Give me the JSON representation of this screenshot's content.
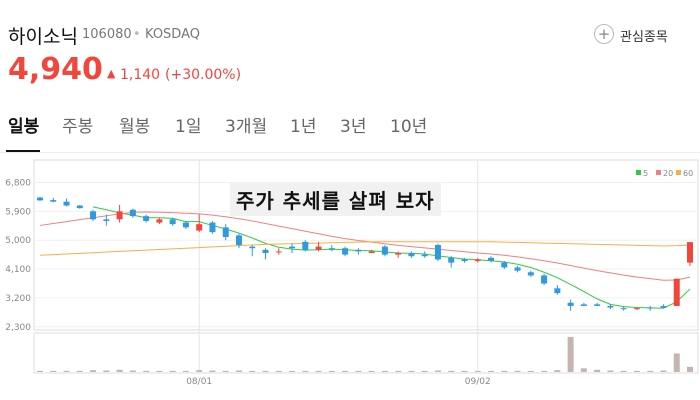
{
  "header": {
    "name": "하이소닉",
    "code": "106080",
    "market": "KOSDAQ",
    "watch": "관심종목",
    "price": "4,940",
    "change": "1,140",
    "change_pct": "(+30.00%)"
  },
  "tabs": [
    "일봉",
    "주봉",
    "월봉",
    "1일",
    "3개월",
    "1년",
    "3년",
    "10년"
  ],
  "overlay": "주가 추세를 살펴 보자",
  "chart_data": {
    "type": "candlestick",
    "categories": [
      null,
      null,
      null,
      null,
      null,
      null,
      null,
      null,
      null,
      null,
      null,
      null,
      "08/01",
      null,
      null,
      null,
      null,
      null,
      null,
      null,
      null,
      null,
      null,
      null,
      null,
      null,
      null,
      null,
      null,
      null,
      null,
      null,
      null,
      "09/02",
      null,
      null,
      null,
      null,
      null,
      null,
      null,
      null,
      null,
      null,
      null,
      null,
      null,
      null,
      null,
      null
    ],
    "open": [
      6330,
      6250,
      6200,
      6080,
      5900,
      5650,
      5650,
      5950,
      5750,
      5550,
      5650,
      5550,
      5300,
      5550,
      5400,
      5150,
      4800,
      4700,
      4650,
      4800,
      4950,
      4700,
      4750,
      4750,
      4700,
      4600,
      4800,
      4550,
      4600,
      4550,
      4850,
      4450,
      4400,
      4350,
      4450,
      4300,
      4150,
      4000,
      3900,
      3500,
      3050,
      3000,
      3000,
      2950,
      2880,
      2850,
      2900,
      2950,
      2950,
      4300
    ],
    "high": [
      6350,
      6320,
      6300,
      6100,
      5950,
      5800,
      6100,
      5980,
      5800,
      5700,
      5700,
      5600,
      5800,
      5600,
      5500,
      5200,
      4850,
      4750,
      4750,
      4900,
      5000,
      4950,
      4850,
      4800,
      4750,
      4700,
      4850,
      4650,
      4650,
      4650,
      4900,
      4500,
      4450,
      4450,
      4500,
      4350,
      4200,
      4050,
      3950,
      3600,
      3150,
      3050,
      3050,
      3000,
      2950,
      2900,
      2950,
      3000,
      3800,
      4940
    ],
    "low": [
      6230,
      6180,
      6050,
      5980,
      5600,
      5450,
      5550,
      5700,
      5550,
      5500,
      5450,
      5350,
      5250,
      5200,
      5000,
      4750,
      4500,
      4400,
      4550,
      4600,
      4650,
      4650,
      4650,
      4500,
      4550,
      4600,
      4500,
      4450,
      4450,
      4450,
      4350,
      4150,
      4300,
      4300,
      4300,
      4100,
      4000,
      3850,
      3600,
      3300,
      2800,
      2950,
      2950,
      2850,
      2800,
      2820,
      2800,
      2880,
      2950,
      4200
    ],
    "close": [
      6240,
      6200,
      6080,
      6000,
      5650,
      5600,
      5900,
      5750,
      5600,
      5650,
      5500,
      5400,
      5500,
      5250,
      5100,
      4850,
      4750,
      4600,
      4650,
      4750,
      4700,
      4800,
      4700,
      4550,
      4650,
      4650,
      4550,
      4600,
      4500,
      4500,
      4400,
      4300,
      4350,
      4400,
      4350,
      4150,
      4050,
      3900,
      3650,
      3350,
      2950,
      2950,
      2950,
      2900,
      2850,
      2880,
      2880,
      2900,
      3800,
      4940
    ],
    "volume": [
      3,
      3,
      3,
      3,
      5,
      4,
      6,
      4,
      3,
      3,
      3,
      3,
      5,
      4,
      3,
      4,
      3,
      3,
      3,
      3,
      3,
      3,
      3,
      3,
      3,
      3,
      3,
      3,
      3,
      3,
      4,
      3,
      3,
      3,
      3,
      3,
      3,
      3,
      3,
      5,
      95,
      10,
      6,
      4,
      3,
      3,
      3,
      4,
      50,
      14
    ],
    "series": [
      {
        "name": "5",
        "color": "#2ecc40",
        "values": [
          null,
          null,
          null,
          null,
          6040,
          5950,
          5850,
          5780,
          5700,
          5700,
          5680,
          5580,
          5580,
          5460,
          5350,
          5220,
          5070,
          4900,
          4780,
          4720,
          4690,
          4700,
          4720,
          4700,
          4680,
          4670,
          4630,
          4600,
          4590,
          4570,
          4510,
          4460,
          4410,
          4390,
          4360,
          4320,
          4250,
          4150,
          4000,
          3830,
          3620,
          3400,
          3170,
          3000,
          2930,
          2900,
          2890,
          2880,
          3080,
          3480
        ]
      },
      {
        "name": "20",
        "color": "#f08080",
        "values": [
          5460,
          5520,
          5580,
          5640,
          5700,
          5760,
          5820,
          5870,
          5880,
          5870,
          5860,
          5840,
          5820,
          5780,
          5730,
          5670,
          5600,
          5520,
          5440,
          5360,
          5280,
          5200,
          5120,
          5050,
          4990,
          4940,
          4890,
          4840,
          4800,
          4760,
          4720,
          4680,
          4640,
          4600,
          4570,
          4530,
          4480,
          4420,
          4360,
          4290,
          4210,
          4130,
          4050,
          3980,
          3910,
          3850,
          3800,
          3750,
          3760,
          3850
        ]
      },
      {
        "name": "60",
        "color": "#f5b041",
        "values": [
          4530,
          4550,
          4570,
          4590,
          4610,
          4630,
          4650,
          4670,
          4690,
          4710,
          4730,
          4750,
          4770,
          4790,
          4810,
          4830,
          4850,
          4870,
          4880,
          4890,
          4900,
          4910,
          4920,
          4930,
          4940,
          4950,
          4950,
          4950,
          4950,
          4950,
          4950,
          4950,
          4950,
          4950,
          4950,
          4940,
          4930,
          4920,
          4910,
          4900,
          4890,
          4880,
          4870,
          4860,
          4850,
          4840,
          4830,
          4820,
          4830,
          4850
        ]
      }
    ],
    "up_color": "#f2463d",
    "down_color": "#2f9ae0",
    "volume_color": "#c5b5b0",
    "ylim": [
      2200,
      7500
    ],
    "yticks": [
      {
        "value": 6800,
        "label": "6,800"
      },
      {
        "value": 5900,
        "label": "5,900"
      },
      {
        "value": 5000,
        "label": "5,000"
      },
      {
        "value": 4100,
        "label": "4,100"
      },
      {
        "value": 3200,
        "label": "3,200"
      },
      {
        "value": 2300,
        "label": "2,300"
      }
    ],
    "vlim": [
      0,
      100
    ],
    "grid": true
  }
}
